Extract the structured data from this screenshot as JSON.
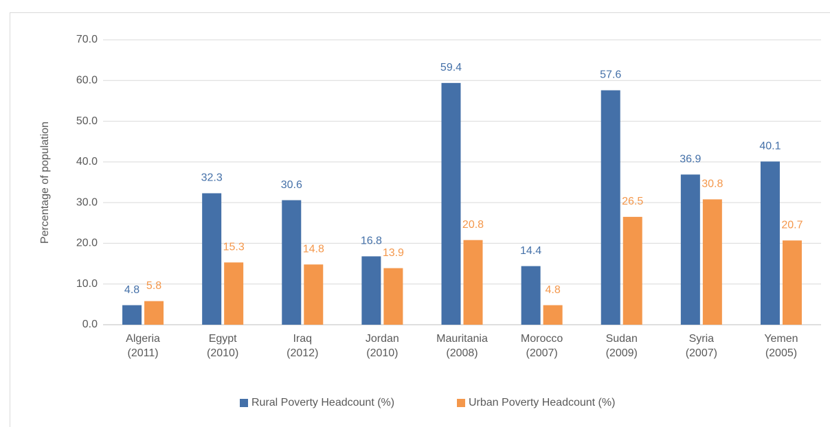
{
  "chart_data": {
    "type": "bar",
    "y_label": "Percentage of population",
    "categories": [
      "Algeria\n(2011)",
      "Egypt\n(2010)",
      "Iraq\n(2012)",
      "Jordan\n(2010)",
      "Mauritania\n(2008)",
      "Morocco\n(2007)",
      "Sudan\n(2009)",
      "Syria\n(2007)",
      "Yemen\n(2005)"
    ],
    "series": [
      {
        "name": "Rural Poverty Headcount (%)",
        "color": "#4470a8",
        "values": [
          4.8,
          32.3,
          30.6,
          16.8,
          59.4,
          14.4,
          57.6,
          36.9,
          40.1
        ]
      },
      {
        "name": "Urban Poverty Headcount (%)",
        "color": "#f4974b",
        "values": [
          5.8,
          15.3,
          14.8,
          13.9,
          20.8,
          4.8,
          26.5,
          30.8,
          20.7
        ]
      }
    ],
    "ylim": [
      0,
      70
    ],
    "yticks": [
      {
        "value": 0,
        "label": "0.0"
      },
      {
        "value": 10,
        "label": "10.0"
      },
      {
        "value": 20,
        "label": "20.0"
      },
      {
        "value": 30,
        "label": "30.0"
      },
      {
        "value": 40,
        "label": "40.0"
      },
      {
        "value": 50,
        "label": "50.0"
      },
      {
        "value": 60,
        "label": "60.0"
      },
      {
        "value": 70,
        "label": "70.0"
      }
    ],
    "grid": true,
    "legend": "bottom"
  }
}
